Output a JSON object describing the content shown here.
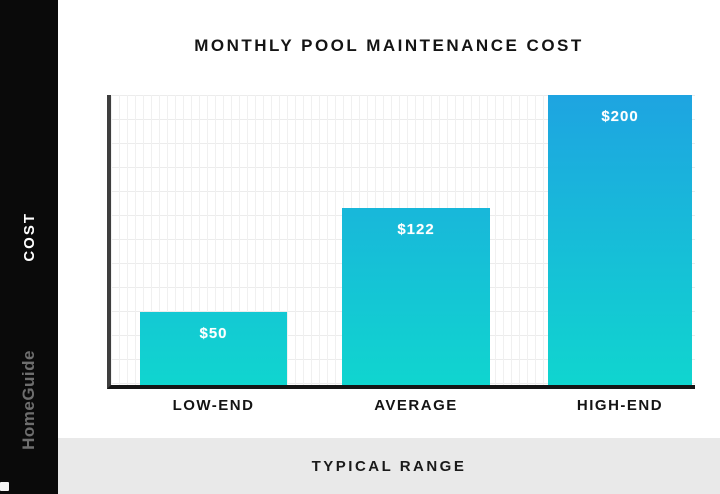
{
  "branding": {
    "brand_name": "HomeGuide"
  },
  "chart_data": {
    "type": "bar",
    "title": "MONTHLY POOL MAINTENANCE COST",
    "categories": [
      "LOW-END",
      "AVERAGE",
      "HIGH-END"
    ],
    "values": [
      50,
      122,
      200
    ],
    "value_labels": [
      "$50",
      "$122",
      "$200"
    ],
    "xlabel": "TYPICAL RANGE",
    "ylabel": "COST",
    "ylim": [
      0,
      200
    ],
    "grid": true,
    "legend": "none",
    "bar_gradient_top": "#1ea4e1",
    "bar_gradient_bottom": "#10d5cf",
    "axis_color": "#151515",
    "background_color": "#ffffff",
    "side_band_color": "#0a0a0a",
    "bottom_strip_color": "#e9e9e9"
  }
}
